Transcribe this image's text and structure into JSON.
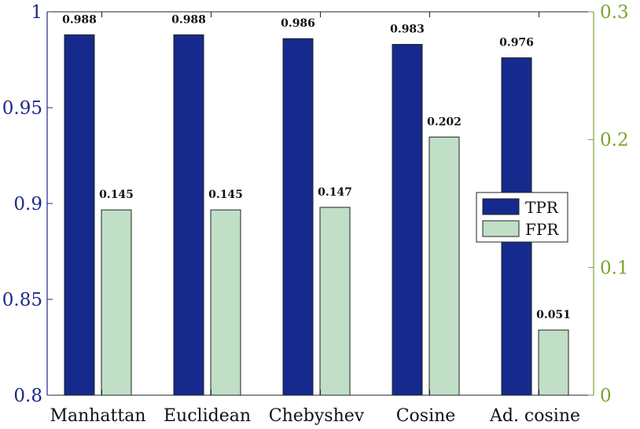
{
  "chart_data": {
    "type": "bar",
    "categories": [
      "Manhattan",
      "Euclidean",
      "Chebyshev",
      "Cosine",
      "Ad. cosine"
    ],
    "series": [
      {
        "name": "TPR",
        "axis": "left",
        "values": [
          0.988,
          0.988,
          0.986,
          0.983,
          0.976
        ],
        "labels": [
          "0.988",
          "0.988",
          "0.986",
          "0.983",
          "0.976"
        ],
        "color": "#152a8c"
      },
      {
        "name": "FPR",
        "axis": "right",
        "values": [
          0.145,
          0.145,
          0.147,
          0.202,
          0.051
        ],
        "labels": [
          "0.145",
          "0.145",
          "0.147",
          "0.202",
          "0.051"
        ],
        "color": "#c0dfc6"
      }
    ],
    "y_left": {
      "lim": [
        0.8,
        1.0
      ],
      "ticks": [
        0.8,
        0.85,
        0.9,
        0.95,
        1.0
      ],
      "tick_labels": [
        "0.8",
        "0.85",
        "0.9",
        "0.95",
        "1"
      ],
      "color": "#1b2a8a"
    },
    "y_right": {
      "lim": [
        0,
        0.3
      ],
      "ticks": [
        0,
        0.1,
        0.2,
        0.3
      ],
      "tick_labels": [
        "0",
        "0.1",
        "0.2",
        "0.3"
      ],
      "color": "#7aa52b"
    },
    "legend": {
      "entries": [
        "TPR",
        "FPR"
      ],
      "placement": "right"
    },
    "title": "",
    "xlabel": "",
    "ylabel": ""
  }
}
